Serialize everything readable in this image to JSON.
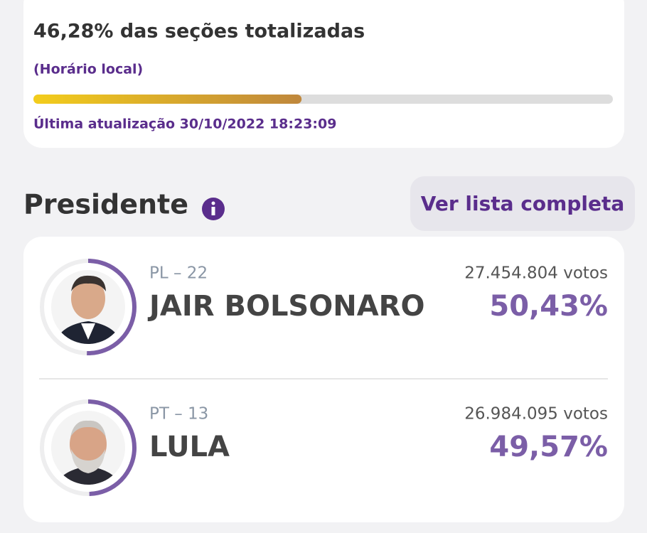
{
  "progress": {
    "title": "46,28% das seções totalizadas",
    "subtitle": "(Horário local)",
    "percent": 46.28,
    "updated": "Última atualização 30/10/2022 18:23:09"
  },
  "section": {
    "title": "Presidente",
    "button": "Ver lista completa"
  },
  "candidates": [
    {
      "party": "PL – 22",
      "name": "JAIR BOLSONARO",
      "votes": "27.454.804 votos",
      "percent_label": "50,43%",
      "share": 50.43
    },
    {
      "party": "PT – 13",
      "name": "LULA",
      "votes": "26.984.095 votos",
      "percent_label": "49,57%",
      "share": 49.57
    }
  ]
}
